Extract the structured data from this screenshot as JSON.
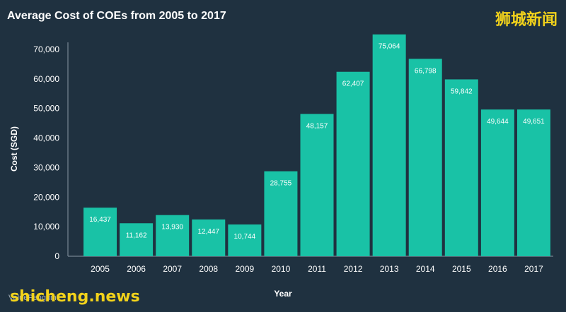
{
  "header": {
    "title": "Average Cost of COEs from 2005 to 2017",
    "brand": "狮城新闻"
  },
  "footer": {
    "watermark": "shicheng.news",
    "source": "ValuePenguin"
  },
  "colors": {
    "background": "#1f3140",
    "bar": "#19c2a6",
    "text": "#ffffff",
    "brand": "#f2d21b"
  },
  "chart_data": {
    "type": "bar",
    "title": "Average Cost of COEs from 2005 to 2017",
    "xlabel": "Year",
    "ylabel": "Cost (SGD)",
    "ylim": [
      0,
      75000
    ],
    "yticks": [
      "0",
      "10,000",
      "20,000",
      "30,000",
      "40,000",
      "50,000",
      "60,000",
      "70,000"
    ],
    "categories": [
      "2005",
      "2006",
      "2007",
      "2008",
      "2009",
      "2010",
      "2011",
      "2012",
      "2013",
      "2014",
      "2015",
      "2016",
      "2017"
    ],
    "values": [
      16437,
      11162,
      13930,
      12447,
      10744,
      28755,
      48157,
      62407,
      75064,
      66798,
      59842,
      49644,
      49651
    ],
    "labels": [
      "16,437",
      "11,162",
      "13,930",
      "12,447",
      "10,744",
      "28,755",
      "48,157",
      "62,407",
      "75,064",
      "66,798",
      "59,842",
      "49,644",
      "49,651"
    ],
    "grid": false,
    "legend": "none"
  }
}
